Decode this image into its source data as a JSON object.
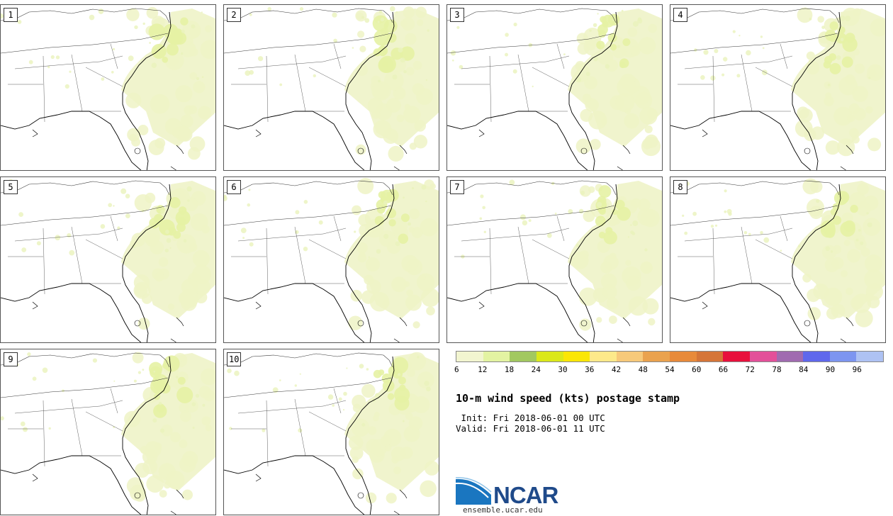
{
  "panels": [
    {
      "label": "1"
    },
    {
      "label": "2"
    },
    {
      "label": "3"
    },
    {
      "label": "4"
    },
    {
      "label": "5"
    },
    {
      "label": "6"
    },
    {
      "label": "7"
    },
    {
      "label": "8"
    },
    {
      "label": "9"
    },
    {
      "label": "10"
    }
  ],
  "colorbar": {
    "colors": [
      "#f2f5d0",
      "#e3f3a2",
      "#a2c860",
      "#dbe81a",
      "#fbe605",
      "#fde98a",
      "#f7c97a",
      "#eaa24e",
      "#e88a3a",
      "#d57538",
      "#e8103c",
      "#e35099",
      "#a06bb0",
      "#5f68ec",
      "#7d95f0",
      "#aec2f3"
    ],
    "labels": [
      "6",
      "12",
      "18",
      "24",
      "30",
      "36",
      "42",
      "48",
      "54",
      "60",
      "66",
      "72",
      "78",
      "84",
      "90",
      "96"
    ]
  },
  "title": "10-m wind speed (kts) postage stamp",
  "init": " Init: Fri 2018-06-01 00 UTC",
  "valid": "Valid: Fri 2018-06-01 11 UTC",
  "logo": {
    "text": "NCAR",
    "url": "ensemble.ucar.edu"
  }
}
